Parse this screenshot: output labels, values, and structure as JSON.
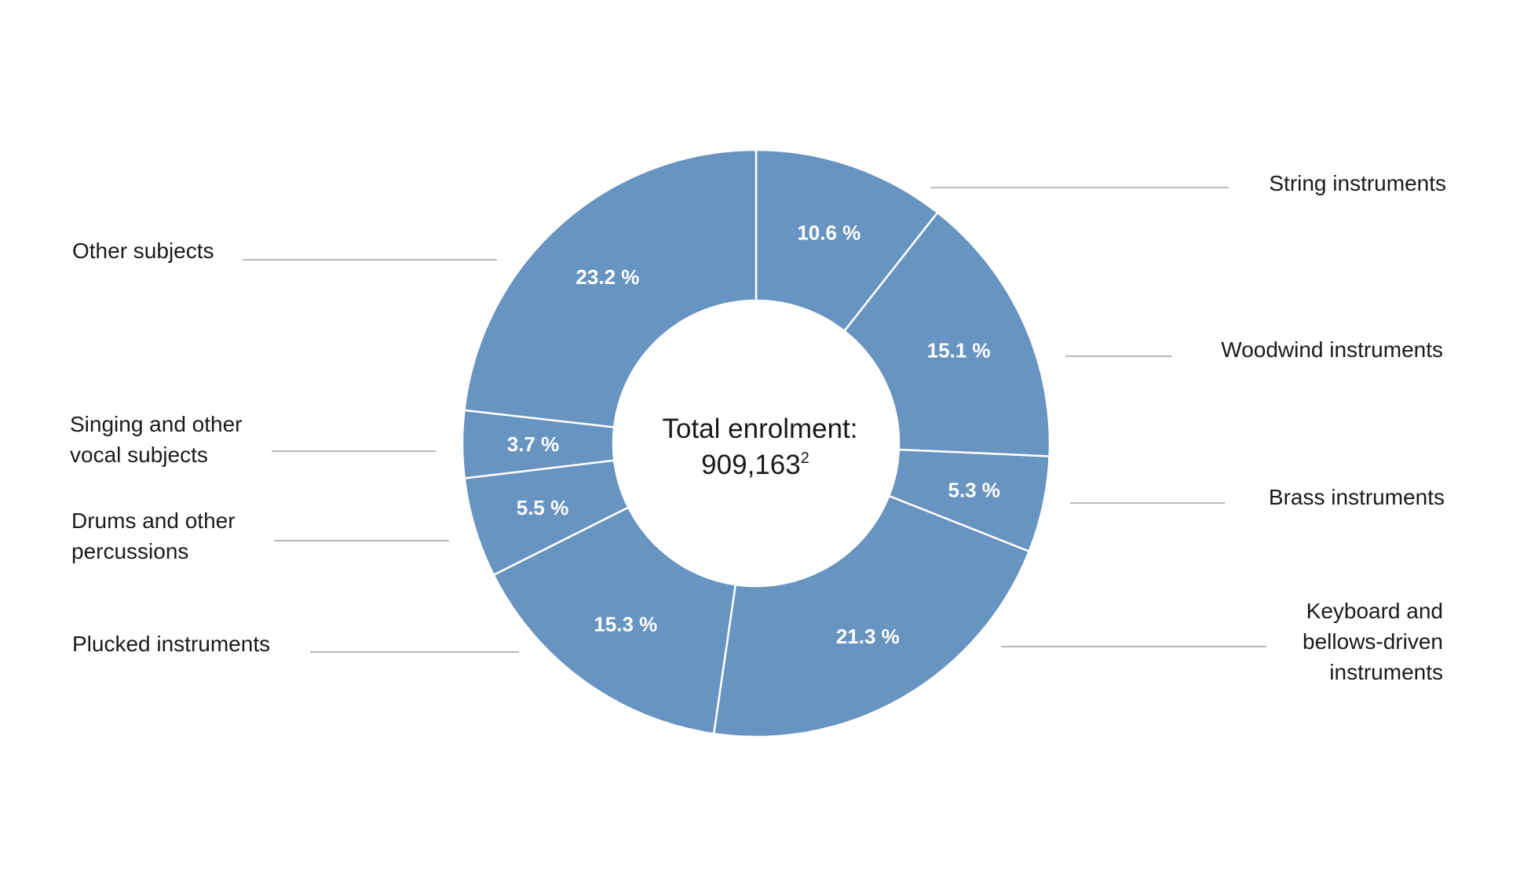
{
  "chart_data": {
    "type": "pie",
    "style": "donut",
    "center": {
      "title": "Total enrolment:",
      "value": "909,163",
      "superscript": "2"
    },
    "color": "#6794c0",
    "separator_color": "#ffffff",
    "slices": [
      {
        "name": "String instruments",
        "value": 10.6,
        "value_label": "10.6 %"
      },
      {
        "name": "Woodwind instruments",
        "value": 15.1,
        "value_label": "15.1 %"
      },
      {
        "name": "Brass instruments",
        "value": 5.3,
        "value_label": "5.3 %"
      },
      {
        "name": "Keyboard and bellows-driven instruments",
        "value": 21.3,
        "value_label": "21.3 %",
        "label_lines": [
          "Keyboard and",
          "bellows-driven",
          "instruments"
        ]
      },
      {
        "name": "Plucked instruments",
        "value": 15.3,
        "value_label": "15.3 %"
      },
      {
        "name": "Drums and other percussions",
        "value": 5.5,
        "value_label": "5.5 %",
        "label_lines": [
          "Drums and other",
          "percussions"
        ]
      },
      {
        "name": "Singing and other vocal subjects",
        "value": 3.7,
        "value_label": "3.7 %",
        "label_lines": [
          "Singing and other",
          "vocal subjects"
        ]
      },
      {
        "name": "Other subjects",
        "value": 23.2,
        "value_label": "23.2 %"
      }
    ],
    "start_angle": "12 o'clock",
    "direction": "clockwise"
  }
}
